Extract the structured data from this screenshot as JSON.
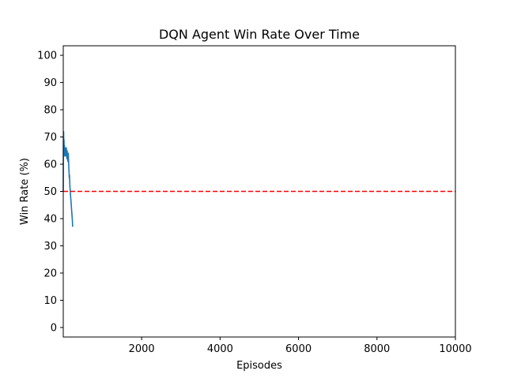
{
  "chart_data": {
    "type": "line",
    "title": "DQN Agent Win Rate Over Time",
    "xlabel": "Episodes",
    "ylabel": "Win Rate (%)",
    "xlim": [
      1,
      10000
    ],
    "ylim": [
      -3.5,
      103.5
    ],
    "xticks": [
      2000,
      4000,
      6000,
      8000,
      10000
    ],
    "yticks": [
      0,
      10,
      20,
      30,
      40,
      50,
      60,
      70,
      80,
      90,
      100
    ],
    "grid": false,
    "legend": "none",
    "series": [
      {
        "color": "#1f77b4",
        "x": [
          1,
          5,
          10,
          15,
          20,
          25,
          30,
          35,
          40,
          45,
          50,
          55,
          60,
          65,
          70,
          75,
          80,
          85,
          90,
          95,
          100,
          105,
          110,
          115,
          120,
          125,
          130,
          135,
          140,
          145,
          150,
          155,
          160,
          165,
          170,
          175,
          180,
          185,
          190,
          195,
          200,
          205,
          210,
          215,
          220,
          225,
          230,
          235,
          240
        ],
        "values": [
          50,
          70,
          72,
          66,
          69,
          63,
          67,
          64,
          66,
          65,
          64,
          66,
          63,
          65,
          64,
          65,
          66,
          63,
          64,
          62,
          65,
          63,
          64,
          62,
          61,
          63,
          64,
          62,
          60,
          58,
          57,
          55,
          56,
          54,
          52,
          51,
          50,
          49,
          48,
          47,
          46,
          45,
          44,
          43,
          42,
          41,
          40,
          39,
          37
        ]
      }
    ],
    "reference_line": {
      "y": 50,
      "color": "#ff0000",
      "style": "dashed"
    }
  }
}
